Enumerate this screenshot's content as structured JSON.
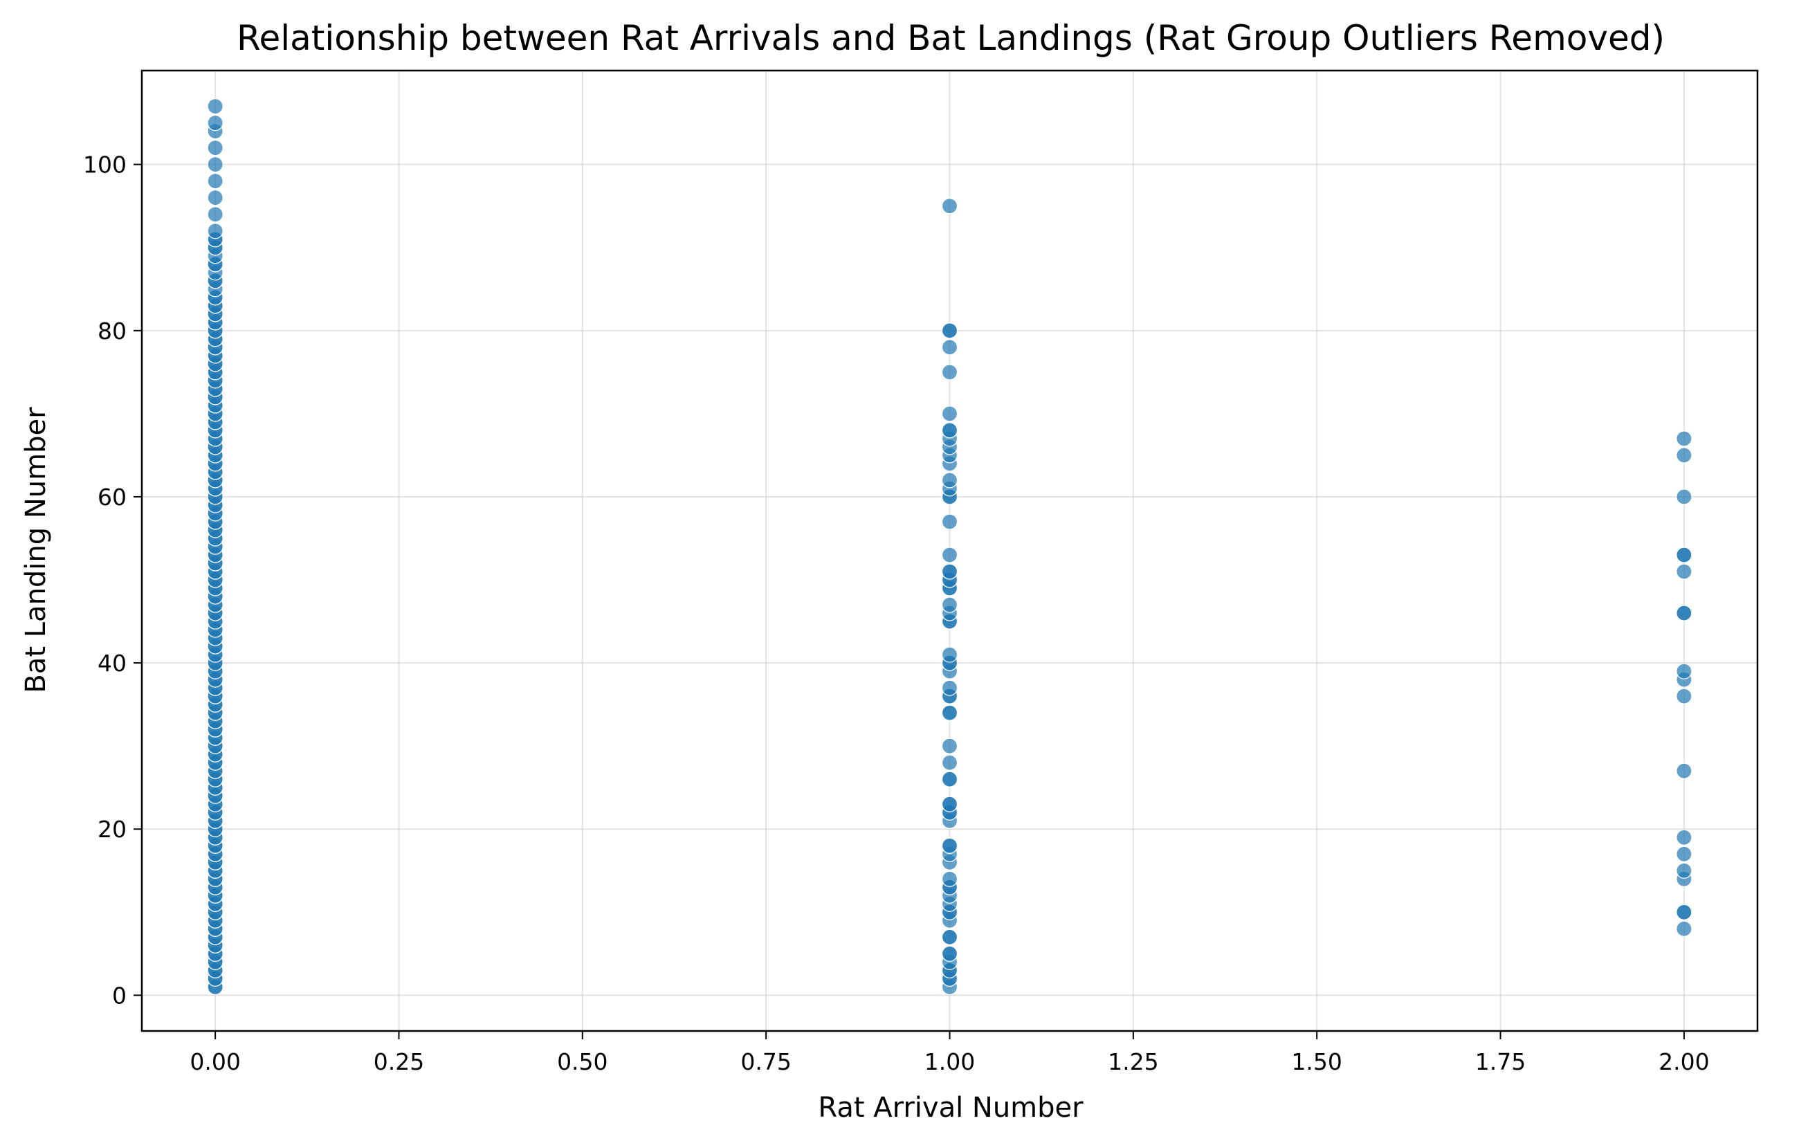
{
  "chart_data": {
    "type": "scatter",
    "title": "Relationship between Rat Arrivals and Bat Landings (Rat Group Outliers Removed)",
    "xlabel": "Rat Arrival Number",
    "ylabel": "Bat Landing Number",
    "xlim": [
      -0.1,
      2.1
    ],
    "ylim": [
      -4.3,
      111.3
    ],
    "xticks": [
      0.0,
      0.25,
      0.5,
      0.75,
      1.0,
      1.25,
      1.5,
      1.75,
      2.0
    ],
    "xtick_labels": [
      "0.00",
      "0.25",
      "0.50",
      "0.75",
      "1.00",
      "1.25",
      "1.50",
      "1.75",
      "2.00"
    ],
    "yticks": [
      0,
      20,
      40,
      60,
      80,
      100
    ],
    "ytick_labels": [
      "0",
      "20",
      "40",
      "60",
      "80",
      "100"
    ],
    "grid": true,
    "legend": "none",
    "colors": {
      "points": "#1f77b4"
    },
    "series": [
      {
        "x_value": 0,
        "values": [
          1,
          1,
          2,
          2,
          3,
          3,
          4,
          4,
          5,
          5,
          6,
          6,
          7,
          7,
          8,
          8,
          9,
          9,
          10,
          10,
          11,
          11,
          12,
          12,
          13,
          13,
          14,
          14,
          15,
          15,
          16,
          16,
          17,
          17,
          18,
          18,
          19,
          19,
          20,
          20,
          21,
          21,
          22,
          22,
          23,
          23,
          24,
          24,
          25,
          25,
          26,
          26,
          27,
          27,
          28,
          28,
          29,
          29,
          30,
          30,
          31,
          31,
          32,
          32,
          33,
          33,
          34,
          34,
          35,
          35,
          36,
          36,
          37,
          37,
          38,
          38,
          39,
          39,
          40,
          40,
          41,
          41,
          42,
          42,
          43,
          43,
          44,
          44,
          45,
          45,
          46,
          46,
          47,
          47,
          48,
          48,
          49,
          49,
          50,
          50,
          51,
          51,
          52,
          52,
          53,
          53,
          54,
          54,
          55,
          55,
          56,
          56,
          57,
          57,
          58,
          58,
          59,
          59,
          60,
          60,
          61,
          61,
          62,
          62,
          63,
          63,
          64,
          64,
          65,
          65,
          66,
          66,
          67,
          67,
          68,
          68,
          69,
          69,
          70,
          70,
          71,
          71,
          72,
          72,
          73,
          73,
          74,
          74,
          75,
          75,
          76,
          76,
          77,
          77,
          78,
          78,
          79,
          79,
          80,
          80,
          81,
          81,
          82,
          82,
          83,
          83,
          84,
          84,
          85,
          86,
          86,
          87,
          88,
          88,
          89,
          90,
          90,
          91,
          91,
          92,
          94,
          96,
          98,
          100,
          102,
          104,
          105,
          107
        ]
      },
      {
        "x_value": 1,
        "values": [
          1,
          2,
          2,
          3,
          3,
          4,
          5,
          5,
          7,
          7,
          9,
          10,
          10,
          11,
          12,
          13,
          13,
          14,
          16,
          17,
          18,
          18,
          21,
          22,
          22,
          23,
          23,
          26,
          26,
          28,
          30,
          34,
          34,
          36,
          36,
          37,
          39,
          40,
          40,
          41,
          45,
          45,
          46,
          47,
          49,
          49,
          50,
          50,
          51,
          51,
          53,
          57,
          60,
          60,
          61,
          62,
          64,
          65,
          66,
          67,
          68,
          68,
          70,
          75,
          78,
          80,
          80,
          95
        ]
      },
      {
        "x_value": 2,
        "values": [
          8,
          10,
          10,
          14,
          15,
          17,
          19,
          27,
          36,
          38,
          39,
          46,
          46,
          51,
          53,
          53,
          60,
          65,
          67
        ]
      }
    ]
  }
}
